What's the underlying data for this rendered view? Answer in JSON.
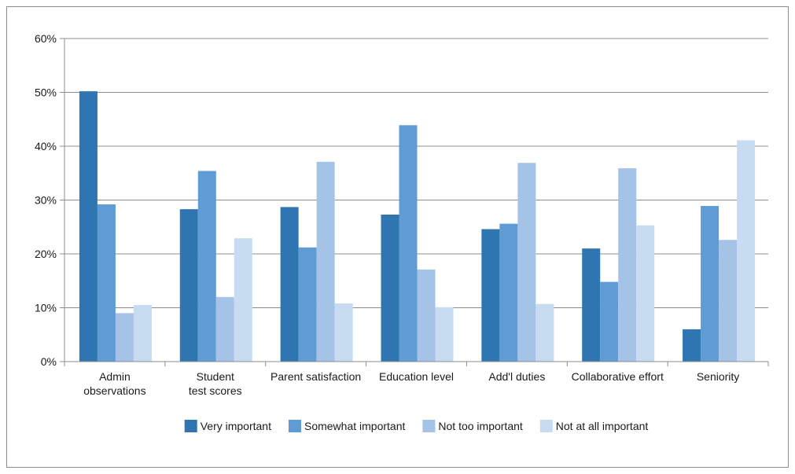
{
  "chart_data": {
    "type": "bar",
    "title": "",
    "xlabel": "",
    "ylabel": "",
    "ylim": [
      0,
      60
    ],
    "yticks": [
      "0%",
      "10%",
      "20%",
      "30%",
      "40%",
      "50%",
      "60%"
    ],
    "grid": true,
    "legend_position": "bottom",
    "categories": [
      [
        "Admin",
        "observations"
      ],
      [
        "Student",
        "test scores"
      ],
      [
        "Parent satisfaction"
      ],
      [
        "Education level"
      ],
      [
        "Add'l duties"
      ],
      [
        "Collaborative effort"
      ],
      [
        "Seniority"
      ]
    ],
    "series": [
      {
        "name": "Very important",
        "color": "#2e75b2",
        "values": [
          50.2,
          28.3,
          28.7,
          27.3,
          24.6,
          21.0,
          6.0
        ]
      },
      {
        "name": "Somewhat important",
        "color": "#5f9bd4",
        "values": [
          29.2,
          35.4,
          21.2,
          43.9,
          25.6,
          14.8,
          28.9
        ]
      },
      {
        "name": "Not too important",
        "color": "#a5c3e6",
        "values": [
          9.0,
          12.0,
          37.1,
          17.1,
          36.9,
          35.9,
          22.6
        ]
      },
      {
        "name": "Not at all important",
        "color": "#c8dcf1",
        "values": [
          10.5,
          22.9,
          10.8,
          10.1,
          10.7,
          25.3,
          41.1
        ]
      }
    ]
  }
}
